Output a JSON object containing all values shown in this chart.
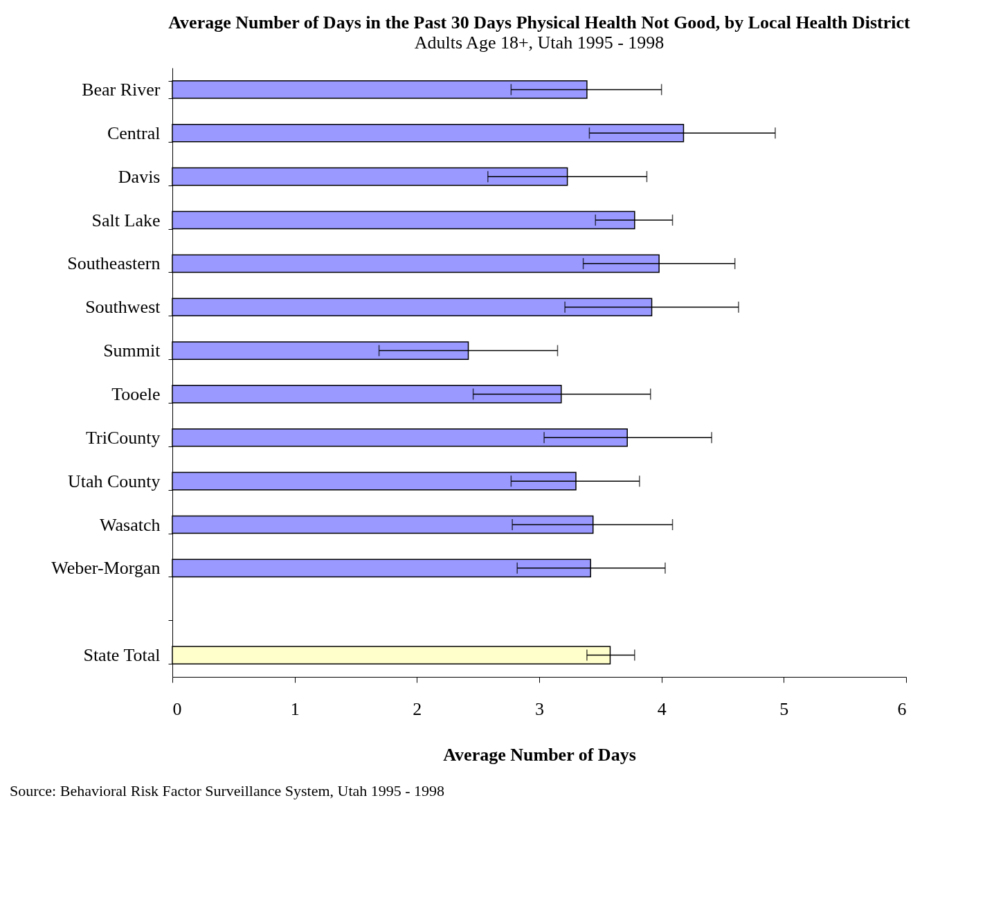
{
  "chart_data": {
    "type": "bar",
    "orientation": "horizontal",
    "title": "Average Number of Days in the Past 30 Days Physical Health Not Good, by Local Health District",
    "subtitle": "Adults Age 18+, Utah 1995 - 1998",
    "xlabel": "Average Number of Days",
    "categories": [
      "Bear River",
      "Central",
      "Davis",
      "Salt Lake",
      "Southeastern",
      "Southwest",
      "Summit",
      "Tooele",
      "TriCounty",
      "Utah County",
      "Wasatch",
      "Weber-Morgan",
      null,
      "State Total"
    ],
    "values": [
      3.39,
      4.18,
      3.23,
      3.78,
      3.98,
      3.92,
      2.42,
      3.18,
      3.72,
      3.3,
      3.44,
      3.42,
      null,
      3.58
    ],
    "colors": [
      "#9999ff",
      "#9999ff",
      "#9999ff",
      "#9999ff",
      "#9999ff",
      "#9999ff",
      "#9999ff",
      "#9999ff",
      "#9999ff",
      "#9999ff",
      "#9999ff",
      "#9999ff",
      "#9999ff",
      "#ffffcc"
    ],
    "errors": [
      [
        2.77,
        4.0
      ],
      [
        3.41,
        4.93
      ],
      [
        2.58,
        3.88
      ],
      [
        3.46,
        4.09
      ],
      [
        3.36,
        4.6
      ],
      [
        3.21,
        4.63
      ],
      [
        1.69,
        3.15
      ],
      [
        2.46,
        3.91
      ],
      [
        3.04,
        4.41
      ],
      [
        2.77,
        3.82
      ],
      [
        2.78,
        4.09
      ],
      [
        2.82,
        4.03
      ],
      null,
      [
        3.39,
        3.78
      ]
    ],
    "xlim": [
      0,
      6
    ],
    "xticks": [
      0,
      1,
      2,
      3,
      4,
      5,
      6
    ],
    "grid": false,
    "annotations": [
      "Source: Behavioral Risk Factor Surveillance System, Utah 1995 - 1998"
    ]
  }
}
